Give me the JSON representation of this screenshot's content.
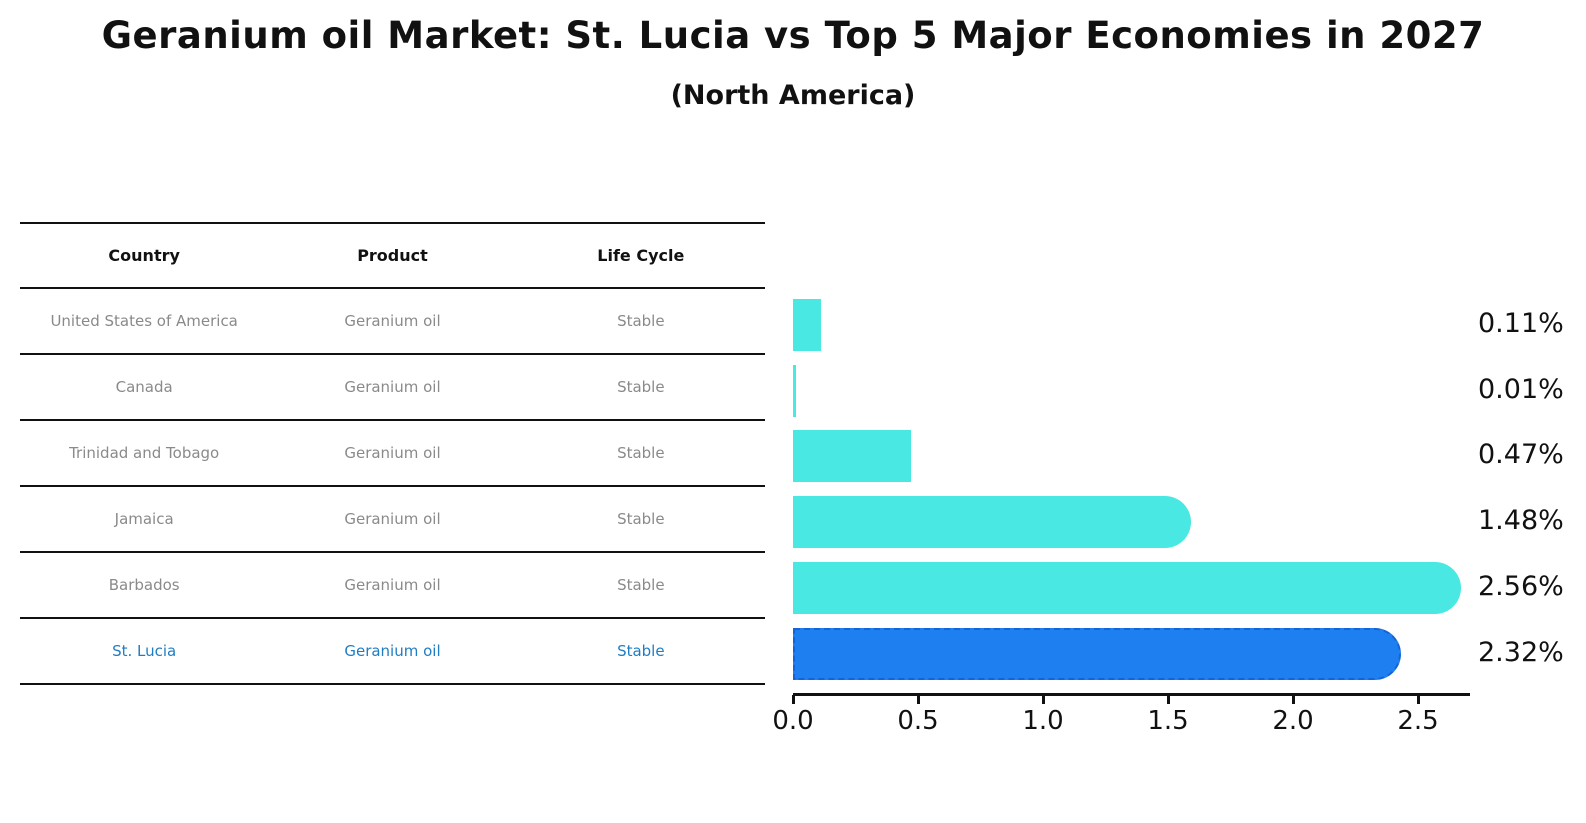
{
  "title": "Geranium oil Market: St. Lucia vs Top 5 Major Economies in 2027",
  "subtitle": "(North America)",
  "table": {
    "headers": [
      "Country",
      "Product",
      "Life Cycle"
    ],
    "rows": [
      {
        "country": "United States of America",
        "product": "Geranium oil",
        "life_cycle": "Stable",
        "highlight": false
      },
      {
        "country": "Canada",
        "product": "Geranium oil",
        "life_cycle": "Stable",
        "highlight": false
      },
      {
        "country": "Trinidad and Tobago",
        "product": "Geranium oil",
        "life_cycle": "Stable",
        "highlight": false
      },
      {
        "country": "Jamaica",
        "product": "Geranium oil",
        "life_cycle": "Stable",
        "highlight": false
      },
      {
        "country": "Barbados",
        "product": "Geranium oil",
        "life_cycle": "Stable",
        "highlight": false
      },
      {
        "country": "St. Lucia",
        "product": "Geranium oil",
        "life_cycle": "Stable",
        "highlight": true
      }
    ]
  },
  "chart_data": {
    "type": "bar",
    "orientation": "horizontal",
    "title": "Geranium oil Market: St. Lucia vs Top 5 Major Economies in 2027 (North America)",
    "categories": [
      "United States of America",
      "Canada",
      "Trinidad and Tobago",
      "Jamaica",
      "Barbados",
      "St. Lucia"
    ],
    "values": [
      0.11,
      0.01,
      0.47,
      1.48,
      2.56,
      2.32
    ],
    "value_labels": [
      "0.11%",
      "0.01%",
      "0.47%",
      "1.48%",
      "2.56%",
      "2.32%"
    ],
    "highlight_index": 5,
    "x_ticks": [
      "0.0",
      "0.5",
      "1.0",
      "1.5",
      "2.0",
      "2.5"
    ],
    "x_tick_values": [
      0.0,
      0.5,
      1.0,
      1.5,
      2.0,
      2.5
    ],
    "xlim": [
      0,
      2.7
    ],
    "grid": false,
    "legend": false,
    "colors": {
      "bar": "#49e8e2",
      "highlight_bar": "#1e80f0",
      "highlight_border": "#1563d6",
      "axis": "#111111",
      "table_text": "#8a8a8a",
      "highlight_text": "#1f7dc4"
    }
  }
}
